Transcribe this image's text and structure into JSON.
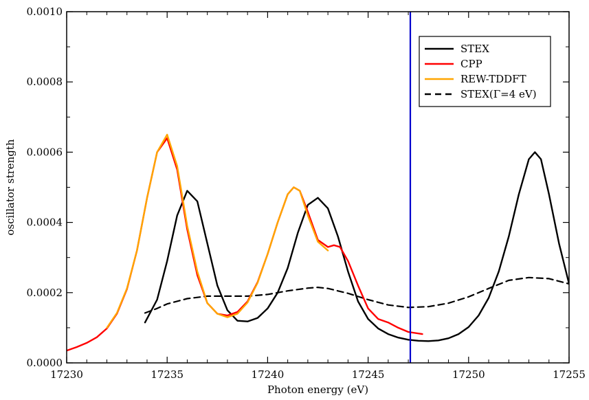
{
  "chart_data": {
    "type": "line",
    "title": "",
    "xlabel": "Photon energy (eV)",
    "ylabel": "oscillator strength",
    "xlim": [
      17230,
      17255
    ],
    "ylim": [
      0,
      0.001
    ],
    "xticks": [
      "17230",
      "17235",
      "17240",
      "17245",
      "17250",
      "17255"
    ],
    "yticks": [
      "0.0000",
      "0.0002",
      "0.0004",
      "0.0006",
      "0.0008",
      "0.0010"
    ],
    "grid": false,
    "legend_position": "top-right",
    "vline": {
      "x": 17247.1,
      "color": "#0000cc"
    },
    "series": [
      {
        "name": "STEX",
        "color": "#000000",
        "dash": "solid",
        "x": [
          17233.9,
          17234.5,
          17235.0,
          17235.5,
          17236.0,
          17236.5,
          17237.0,
          17237.5,
          17238.0,
          17238.5,
          17239.0,
          17239.5,
          17240.0,
          17240.5,
          17241.0,
          17241.5,
          17242.0,
          17242.5,
          17243.0,
          17243.5,
          17244.0,
          17244.5,
          17245.0,
          17245.5,
          17246.0,
          17246.5,
          17247.0,
          17247.5,
          17248.0,
          17248.5,
          17249.0,
          17249.5,
          17250.0,
          17250.5,
          17251.0,
          17251.5,
          17252.0,
          17252.5,
          17253.0,
          17253.3,
          17253.6,
          17254.0,
          17254.5,
          17255.0
        ],
        "y": [
          0.000115,
          0.00018,
          0.00029,
          0.00042,
          0.00049,
          0.00046,
          0.00034,
          0.00022,
          0.00015,
          0.00012,
          0.000118,
          0.000128,
          0.000155,
          0.0002,
          0.00027,
          0.00037,
          0.00045,
          0.00047,
          0.00044,
          0.00036,
          0.00026,
          0.000175,
          0.000125,
          9.8e-05,
          8.2e-05,
          7.2e-05,
          6.6e-05,
          6.3e-05,
          6.2e-05,
          6.4e-05,
          7e-05,
          8.2e-05,
          0.000102,
          0.000135,
          0.000185,
          0.00026,
          0.00036,
          0.00048,
          0.00058,
          0.0006,
          0.00058,
          0.00048,
          0.00034,
          0.000225
        ]
      },
      {
        "name": "CPP",
        "color": "#ff0000",
        "dash": "solid",
        "x": [
          17230.0,
          17230.5,
          17231.0,
          17231.5,
          17232.0,
          17232.5,
          17233.0,
          17233.5,
          17234.0,
          17234.5,
          17235.0,
          17235.5,
          17236.0,
          17236.5,
          17237.0,
          17237.5,
          17238.0,
          17238.5,
          17239.0,
          17239.5,
          17240.0,
          17240.5,
          17241.0,
          17241.3,
          17241.6,
          17242.0,
          17242.5,
          17243.0,
          17243.3,
          17243.6,
          17244.0,
          17244.5,
          17245.0,
          17245.5,
          17246.0,
          17246.5,
          17247.0,
          17247.7
        ],
        "y": [
          3.5e-05,
          4.5e-05,
          5.7e-05,
          7.3e-05,
          9.8e-05,
          0.00014,
          0.00021,
          0.00032,
          0.00047,
          0.0006,
          0.00064,
          0.00055,
          0.00038,
          0.00025,
          0.00017,
          0.00014,
          0.000135,
          0.000145,
          0.000175,
          0.00023,
          0.00031,
          0.0004,
          0.00048,
          0.0005,
          0.00049,
          0.00043,
          0.00035,
          0.00033,
          0.000335,
          0.00033,
          0.00029,
          0.00022,
          0.000155,
          0.000125,
          0.000115,
          0.0001,
          8.8e-05,
          8.2e-05
        ]
      },
      {
        "name": "REW-TDDFT",
        "color": "#ffa500",
        "dash": "solid",
        "x": [
          17232.0,
          17232.5,
          17233.0,
          17233.5,
          17234.0,
          17234.5,
          17235.0,
          17235.5,
          17236.0,
          17236.5,
          17237.0,
          17237.5,
          17238.0,
          17238.5,
          17239.0,
          17239.5,
          17240.0,
          17240.5,
          17241.0,
          17241.3,
          17241.6,
          17242.0,
          17242.5,
          17243.0
        ],
        "y": [
          0.0001,
          0.000142,
          0.000212,
          0.00032,
          0.00047,
          0.0006,
          0.00065,
          0.00056,
          0.00039,
          0.00026,
          0.00017,
          0.00014,
          0.00013,
          0.00014,
          0.000172,
          0.000228,
          0.00031,
          0.0004,
          0.00048,
          0.0005,
          0.00049,
          0.00042,
          0.000345,
          0.00032
        ]
      },
      {
        "name": "STEX(Γ=4 eV)",
        "color": "#000000",
        "dash": "dashed",
        "x": [
          17233.9,
          17234.5,
          17235.0,
          17236.0,
          17237.0,
          17238.0,
          17239.0,
          17240.0,
          17241.0,
          17242.0,
          17242.5,
          17243.0,
          17244.0,
          17245.0,
          17246.0,
          17247.0,
          17248.0,
          17249.0,
          17250.0,
          17251.0,
          17252.0,
          17253.0,
          17254.0,
          17255.0
        ],
        "y": [
          0.000142,
          0.000155,
          0.000168,
          0.000183,
          0.00019,
          0.00019,
          0.00019,
          0.000195,
          0.000205,
          0.000213,
          0.000215,
          0.000212,
          0.000198,
          0.00018,
          0.000165,
          0.000158,
          0.00016,
          0.00017,
          0.000188,
          0.000212,
          0.000235,
          0.000243,
          0.00024,
          0.000225
        ]
      }
    ]
  }
}
